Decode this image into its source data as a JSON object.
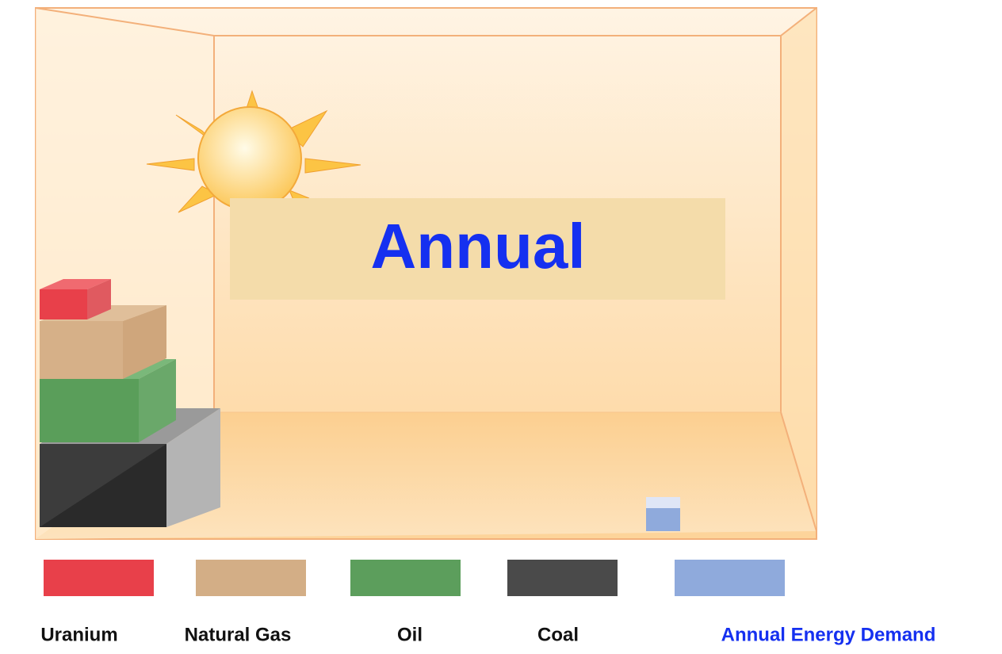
{
  "title": "Annual",
  "legend": [
    {
      "label": "Uranium",
      "color": "#e8404a"
    },
    {
      "label": "Natural Gas",
      "color": "#d3ae86"
    },
    {
      "label": "Oil",
      "color": "#5c9e5c"
    },
    {
      "label": "Coal",
      "color": "#4a4a4a"
    },
    {
      "label": "Annual Energy Demand",
      "color": "#8faadc"
    }
  ]
}
